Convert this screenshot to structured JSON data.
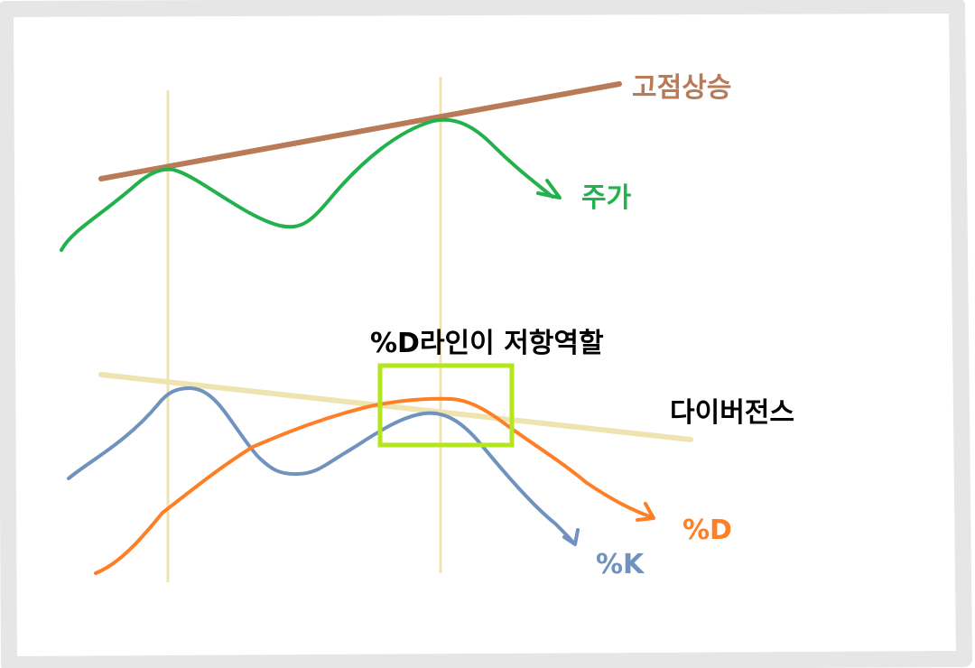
{
  "labels": {
    "resistance_line": "고점상승",
    "price": "주가",
    "d_resistance": "%D라인이 저항역할",
    "divergence": "다이버전스",
    "d_line": "%D",
    "k_line": "%K"
  },
  "colors": {
    "frame": "#e6e6e6",
    "background": "#ffffff",
    "resistance_line": "#b97a57",
    "price": "#22b14c",
    "guide": "#efe4b0",
    "k_line": "#7092be",
    "d_line": "#ff7f27",
    "highlight_box": "#b5e61d",
    "text_dark": "#000000"
  }
}
